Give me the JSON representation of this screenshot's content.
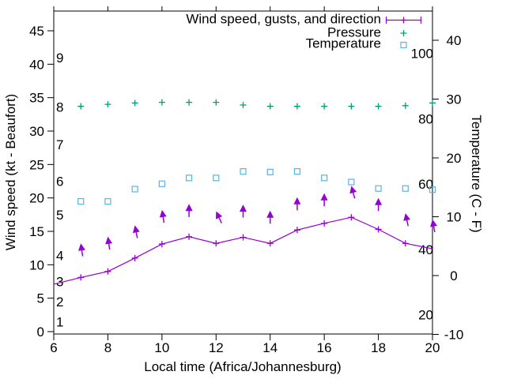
{
  "legend": {
    "wind": "Wind speed, gusts, and direction",
    "pressure": "Pressure",
    "temperature": "Temperature"
  },
  "axes": {
    "x": {
      "label": "Local time (Africa/Johannesburg)",
      "ticks": [
        6,
        8,
        10,
        12,
        14,
        16,
        18,
        20
      ],
      "range": [
        6,
        20
      ]
    },
    "y_left": {
      "label": "Wind speed (kt - Beaufort)",
      "ticks": [
        0,
        5,
        10,
        15,
        20,
        25,
        30,
        35,
        40,
        45
      ],
      "range": [
        0,
        48
      ],
      "beaufort_labels": [
        {
          "label": "1",
          "kt": 1.5
        },
        {
          "label": "2",
          "kt": 4.5
        },
        {
          "label": "3",
          "kt": 7.5
        },
        {
          "label": "4",
          "kt": 11.4
        },
        {
          "label": "5",
          "kt": 17.5
        },
        {
          "label": "6",
          "kt": 22.5
        },
        {
          "label": "7",
          "kt": 28.0
        },
        {
          "label": "8",
          "kt": 33.6
        },
        {
          "label": "9",
          "kt": 41.0
        }
      ]
    },
    "y_right": {
      "label": "Temperature (C - F)",
      "ticks": [
        -10,
        0,
        10,
        20,
        30,
        40
      ],
      "range": [
        -10,
        45
      ],
      "fahrenheit_labels": [
        "20",
        "40",
        "60",
        "80",
        "100"
      ]
    }
  },
  "chart_data": {
    "type": "line",
    "title": "",
    "xlabel": "Local time (Africa/Johannesburg)",
    "ylabel_left": "Wind speed (kt - Beaufort)",
    "ylabel_right": "Temperature (C - F)",
    "x_range": [
      6,
      20
    ],
    "grid": false,
    "legend_position": "top-right-inside",
    "series": [
      {
        "name": "Wind speed",
        "axis": "left",
        "units": "kt",
        "color": "#9400d3",
        "marker": "plus",
        "style": "line-with-points",
        "x": [
          6,
          7,
          8,
          9,
          10,
          11,
          12,
          13,
          14,
          15,
          16,
          17,
          18,
          19,
          20
        ],
        "values": [
          7.1,
          8.1,
          9.0,
          11.0,
          13.1,
          14.2,
          13.2,
          14.1,
          13.2,
          15.2,
          16.2,
          17.1,
          15.3,
          13.2,
          12.4
        ],
        "marker_x": [
          7,
          8,
          9,
          10,
          11,
          12,
          13,
          14,
          15,
          16,
          17,
          18,
          19
        ]
      },
      {
        "name": "Wind gusts and direction",
        "axis": "left",
        "units": "kt",
        "color": "#9400d3",
        "marker": "arrow-up",
        "style": "direction-arrows",
        "x": [
          7,
          8,
          9,
          10,
          11,
          12,
          13,
          14,
          15,
          16,
          17,
          18,
          19,
          20
        ],
        "values": [
          13.2,
          14.2,
          15.9,
          18.2,
          19.1,
          18.0,
          19.0,
          18.1,
          20.1,
          20.7,
          21.8,
          20.0,
          17.7,
          16.8
        ],
        "lean_deg_left": [
          8,
          8,
          11,
          9,
          0,
          25,
          0,
          0,
          0,
          0,
          15,
          0,
          12,
          10
        ]
      },
      {
        "name": "Pressure",
        "axis": "left",
        "units": "unlabeled (plotted position on kt axis)",
        "color": "#009e73",
        "marker": "plus",
        "style": "points",
        "x": [
          7,
          8,
          9,
          10,
          11,
          12,
          13,
          14,
          15,
          16,
          17,
          18,
          19,
          20
        ],
        "values": [
          33.7,
          34.0,
          34.2,
          34.3,
          34.3,
          34.3,
          33.9,
          33.7,
          33.7,
          33.7,
          33.7,
          33.7,
          33.8,
          34.2
        ]
      },
      {
        "name": "Temperature",
        "axis": "right",
        "units": "C",
        "color": "#56b4e9",
        "marker": "open-square",
        "style": "points",
        "x": [
          7,
          8,
          9,
          10,
          11,
          12,
          13,
          14,
          15,
          16,
          17,
          18,
          19,
          20
        ],
        "values": [
          12.6,
          12.6,
          14.7,
          15.6,
          16.6,
          16.6,
          17.7,
          17.6,
          17.7,
          16.6,
          15.9,
          14.8,
          14.8,
          14.6
        ]
      }
    ]
  }
}
